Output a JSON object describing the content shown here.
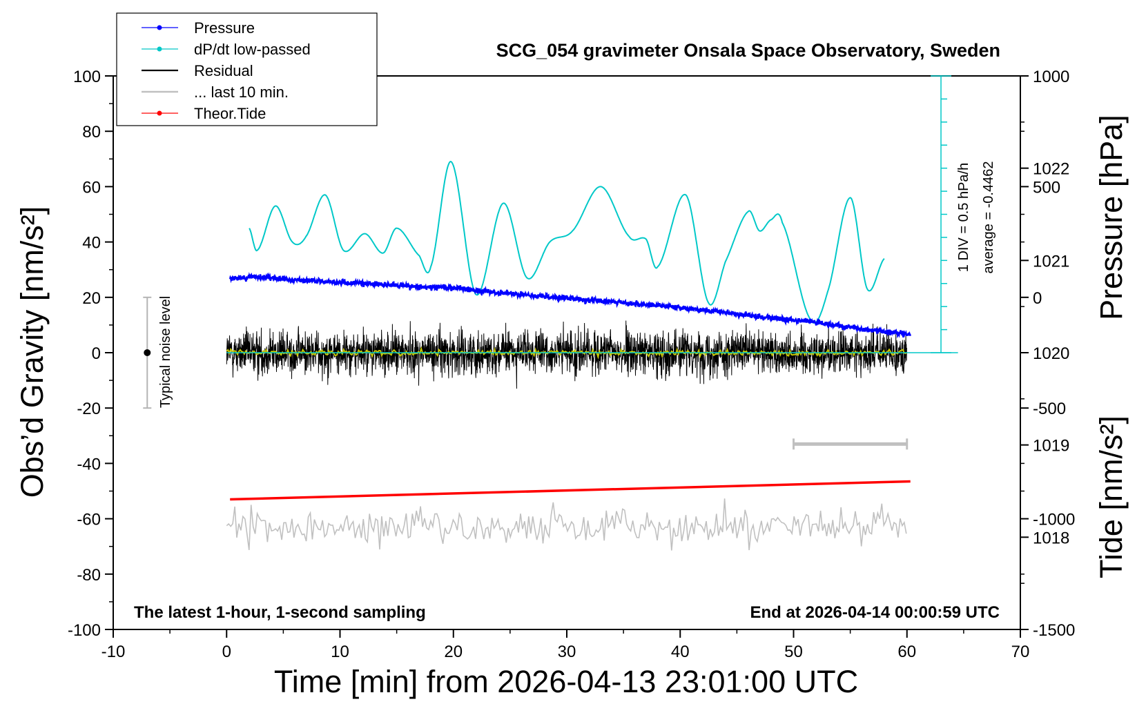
{
  "chart_data": {
    "type": "line",
    "title": "SCG_054 gravimeter Onsala Space Observatory, Sweden",
    "xlabel": "Time [min] from 2026-04-13 23:01:00 UTC",
    "ylabel_left": "Obs’d Gravity [nm/s²]",
    "ylabel_right_pressure": "Pressure [hPa]",
    "ylabel_right_tide": "Tide [nm/s²]",
    "xlim": [
      -10,
      70
    ],
    "ylim": [
      -100,
      100
    ],
    "pressure_lim": [
      1017,
      1023
    ],
    "tide_lim": [
      -1500,
      1000
    ],
    "x_ticks": [
      "-10",
      "0",
      "10",
      "20",
      "30",
      "40",
      "50",
      "60",
      "70"
    ],
    "y_ticks": [
      "-100",
      "-80",
      "-60",
      "-40",
      "-20",
      "0",
      "20",
      "40",
      "60",
      "80",
      "100"
    ],
    "pressure_ticks": [
      "1018",
      "1019",
      "1020",
      "1021",
      "1022"
    ],
    "tide_ticks": [
      "-1500",
      "-1000",
      "-500",
      "0",
      "500",
      "1000"
    ],
    "legend": {
      "placement": "top-left",
      "entries": [
        {
          "label": "Pressure",
          "color": "#0000ff"
        },
        {
          "label": "dP/dt low-passed",
          "color": "#00c8c8"
        },
        {
          "label": "Residual",
          "color": "#000000"
        },
        {
          "label": "... last 10 min.",
          "color": "#c0c0c0"
        },
        {
          "label": "Theor.Tide",
          "color": "#ff0000"
        }
      ]
    },
    "annotations": {
      "noise_label": "Typical noise level",
      "div_label": "1 DIV = 0.5 hPa/h",
      "avg_label": "average = -0.4462",
      "left_note": "The latest 1-hour, 1-second sampling",
      "right_note": "End at 2026-04-14 00:00:59 UTC"
    },
    "noise_bar": {
      "x": -7,
      "y": 0,
      "half_range": 20
    },
    "ten_min_bar": {
      "x_start": 50,
      "x_end": 60,
      "y": -33
    },
    "series": [
      {
        "name": "Pressure",
        "color": "#0000ff",
        "x": [
          0.3,
          3,
          6,
          9,
          12,
          15,
          18,
          21,
          24,
          27,
          30,
          33,
          36,
          39,
          42,
          45,
          48,
          51,
          54,
          57,
          60.3
        ],
        "y": [
          1020.8,
          1020.82,
          1020.79,
          1020.77,
          1020.75,
          1020.73,
          1020.71,
          1020.69,
          1020.65,
          1020.62,
          1020.59,
          1020.56,
          1020.53,
          1020.5,
          1020.46,
          1020.42,
          1020.38,
          1020.34,
          1020.29,
          1020.24,
          1020.2
        ]
      },
      {
        "name": "dP/dt low-passed",
        "color": "#00c8c8",
        "x": [
          2,
          2.7,
          4.3,
          5.8,
          7,
          8.7,
          10.3,
          12.2,
          13.8,
          15,
          17,
          18,
          19.8,
          22,
          24.4,
          26.5,
          28.5,
          30.5,
          33,
          35.5,
          37,
          38,
          40.5,
          42.5,
          44,
          46,
          47,
          48,
          49,
          51.5,
          53,
          55,
          56.5,
          58
        ],
        "y": [
          45,
          37,
          53,
          40,
          42,
          57,
          37,
          43,
          36,
          45,
          35,
          31,
          69,
          21,
          54,
          27,
          40,
          44,
          60,
          42,
          41,
          31,
          57,
          18,
          33,
          51,
          44,
          48,
          47,
          12,
          22,
          56,
          23,
          34
        ]
      },
      {
        "name": "Theor.Tide",
        "color": "#ff0000",
        "x": [
          0.3,
          60.3
        ],
        "y": [
          -53,
          -46.5
        ]
      }
    ],
    "residual": {
      "x_start": 0,
      "x_end": 60,
      "mean": 0,
      "typical_amplitude": 5,
      "max_amplitude": 13
    },
    "residual_lowpass": {
      "color": "#c8c800",
      "typical_amplitude": 1
    },
    "last_10min": {
      "color": "#c0c0c0",
      "x_start": 0,
      "x_end": 60,
      "mean": -63,
      "typical_amplitude": 5,
      "max_amplitude": 11
    },
    "pressure_average_line": {
      "y": 1020,
      "color": "#00c8c8"
    },
    "div_scale_axis": {
      "x": 63,
      "y_top": 100,
      "y_bottom": 0,
      "divisions": 12
    }
  }
}
